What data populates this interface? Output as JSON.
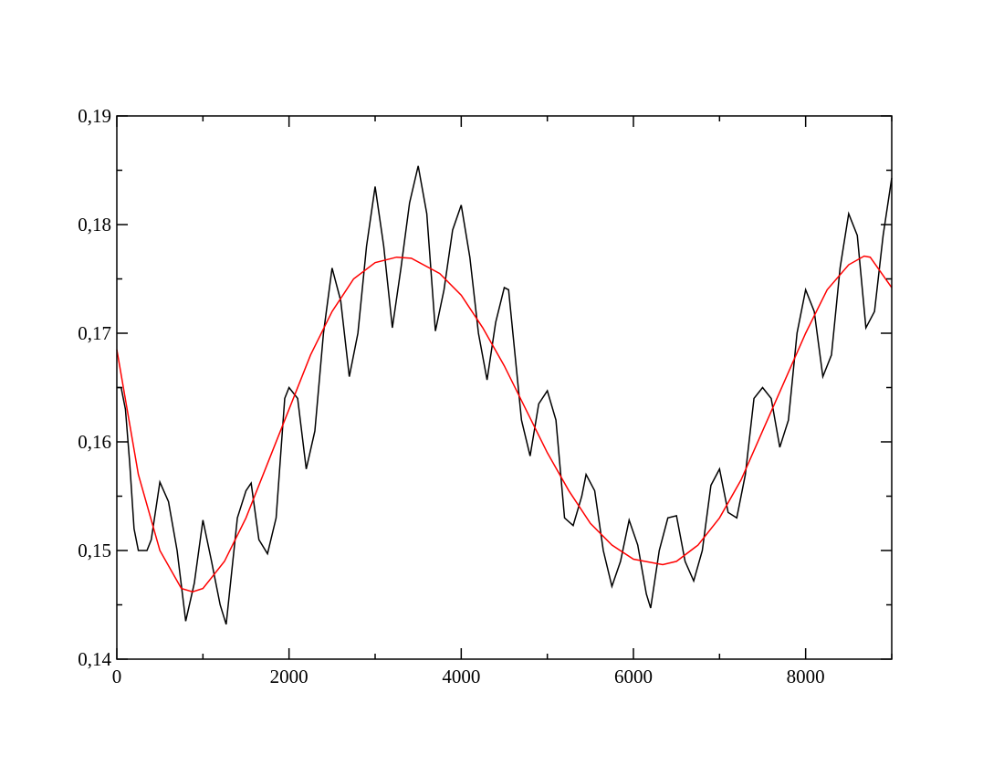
{
  "chart_data": {
    "type": "line",
    "xlim": [
      0,
      9000
    ],
    "ylim": [
      0.14,
      0.19
    ],
    "xticks": [
      0,
      2000,
      4000,
      6000,
      8000
    ],
    "xminorticks": [
      1000,
      3000,
      5000,
      7000,
      9000
    ],
    "yticks": [
      {
        "value": 0.14,
        "label": "0,14"
      },
      {
        "value": 0.15,
        "label": "0,15"
      },
      {
        "value": 0.16,
        "label": "0,16"
      },
      {
        "value": 0.17,
        "label": "0,17"
      },
      {
        "value": 0.18,
        "label": "0,18"
      },
      {
        "value": 0.19,
        "label": "0,19"
      }
    ],
    "yminorticks": [
      0.145,
      0.155,
      0.165,
      0.175,
      0.185
    ],
    "grid": false,
    "series": [
      {
        "color": "#000000",
        "x": [
          0,
          50,
          100,
          150,
          200,
          250,
          350,
          400,
          500,
          600,
          700,
          800,
          900,
          1000,
          1100,
          1200,
          1270,
          1400,
          1500,
          1560,
          1650,
          1750,
          1850,
          1950,
          2000,
          2100,
          2200,
          2300,
          2400,
          2500,
          2600,
          2700,
          2800,
          2900,
          3000,
          3100,
          3200,
          3300,
          3400,
          3500,
          3600,
          3700,
          3800,
          3900,
          4000,
          4100,
          4200,
          4300,
          4400,
          4500,
          4550,
          4600,
          4700,
          4800,
          4900,
          5000,
          5100,
          5200,
          5300,
          5400,
          5450,
          5550,
          5650,
          5750,
          5850,
          5950,
          6050,
          6150,
          6200,
          6300,
          6400,
          6500,
          6600,
          6700,
          6800,
          6900,
          7000,
          7100,
          7200,
          7300,
          7400,
          7500,
          7600,
          7700,
          7800,
          7900,
          8000,
          8100,
          8200,
          8300,
          8400,
          8500,
          8600,
          8700,
          8800,
          8900,
          9000
        ],
        "values": [
          0.165,
          0.165,
          0.163,
          0.158,
          0.152,
          0.15,
          0.15,
          0.151,
          0.1563,
          0.1545,
          0.15,
          0.1435,
          0.147,
          0.1528,
          0.149,
          0.145,
          0.1432,
          0.153,
          0.1555,
          0.1562,
          0.151,
          0.1497,
          0.153,
          0.164,
          0.165,
          0.164,
          0.1575,
          0.161,
          0.17,
          0.176,
          0.173,
          0.166,
          0.17,
          0.178,
          0.1835,
          0.178,
          0.1705,
          0.176,
          0.182,
          0.1854,
          0.181,
          0.1702,
          0.174,
          0.1795,
          0.1818,
          0.177,
          0.17,
          0.1657,
          0.171,
          0.1742,
          0.174,
          0.17,
          0.162,
          0.1587,
          0.1635,
          0.1647,
          0.162,
          0.153,
          0.1523,
          0.155,
          0.157,
          0.1555,
          0.15,
          0.1467,
          0.149,
          0.1528,
          0.1505,
          0.146,
          0.1447,
          0.15,
          0.153,
          0.1532,
          0.149,
          0.1472,
          0.15,
          0.156,
          0.1575,
          0.1535,
          0.153,
          0.157,
          0.164,
          0.165,
          0.164,
          0.1595,
          0.162,
          0.17,
          0.174,
          0.172,
          0.166,
          0.168,
          0.176,
          0.181,
          0.179,
          0.1705,
          0.172,
          0.179,
          0.1843
        ]
      },
      {
        "color": "#ff0000",
        "x": [
          0,
          250,
          500,
          750,
          880,
          1000,
          1250,
          1500,
          1750,
          2000,
          2250,
          2500,
          2750,
          3000,
          3250,
          3420,
          3750,
          4000,
          4250,
          4500,
          4750,
          5000,
          5250,
          5500,
          5750,
          6000,
          6340,
          6500,
          6750,
          7000,
          7250,
          7500,
          7750,
          8000,
          8250,
          8500,
          8680,
          8750,
          9000
        ],
        "values": [
          0.1685,
          0.157,
          0.15,
          0.1465,
          0.1462,
          0.1465,
          0.149,
          0.153,
          0.158,
          0.163,
          0.168,
          0.172,
          0.175,
          0.1765,
          0.177,
          0.1769,
          0.1755,
          0.1735,
          0.1705,
          0.167,
          0.163,
          0.159,
          0.1555,
          0.1525,
          0.1505,
          0.1492,
          0.1487,
          0.149,
          0.1505,
          0.153,
          0.1565,
          0.161,
          0.1655,
          0.17,
          0.174,
          0.1763,
          0.1771,
          0.177,
          0.1742
        ]
      }
    ]
  }
}
